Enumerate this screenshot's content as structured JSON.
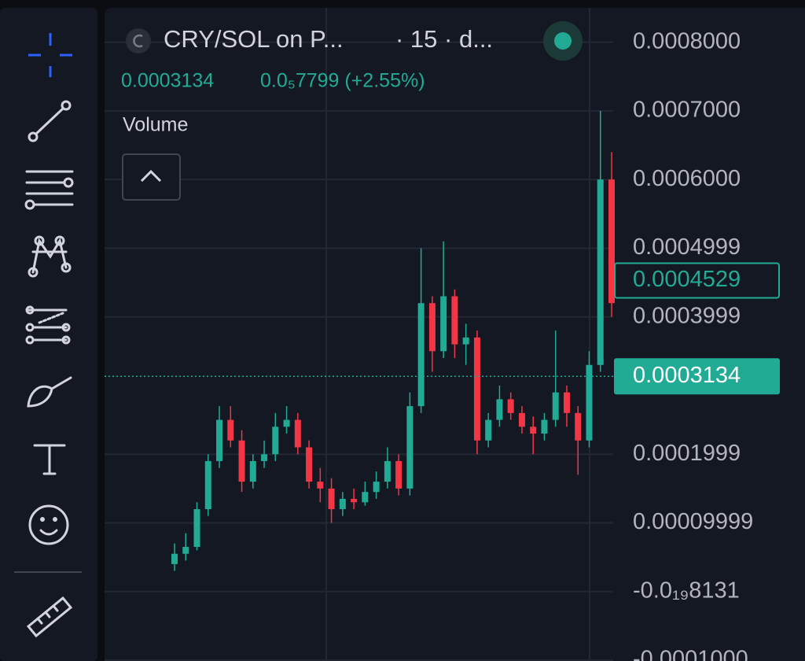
{
  "chart_data": {
    "type": "candlestick",
    "title": "CRY/SOL on P...",
    "subtitle": "· 15 · d...",
    "change_label": "0.0₅7799 (+2.55%)",
    "pane_label": "Volume",
    "last_price": 0.0003134,
    "highlight_price": 0.0004529,
    "up_color": "#22ab94",
    "down_color": "#f23645",
    "ylim": [
      -0.0001,
      0.00085
    ],
    "yticks": [
      {
        "value": 0.0008,
        "label": "0.0008000"
      },
      {
        "value": 0.0007,
        "label": "0.0007000"
      },
      {
        "value": 0.0006,
        "label": "0.0006000"
      },
      0.0004999,
      0.0003999,
      0.0001999,
      9.999e-05,
      {
        "value": -8.131e-20,
        "label": "-0.0₁₉8131"
      },
      {
        "value": -0.0001,
        "label": "-0.0001000"
      }
    ],
    "grid": true,
    "open": [
      4e-05,
      5.5e-05,
      6.5e-05,
      0.00012,
      0.00019,
      0.00025,
      0.00022,
      0.00016,
      0.00019,
      0.0002,
      0.00024,
      0.00025,
      0.00021,
      0.00016,
      0.00015,
      0.00012,
      0.000135,
      0.00013,
      0.000145,
      0.00016,
      0.00019,
      0.00015,
      0.00027,
      0.00042,
      0.00035,
      0.00043,
      0.00036,
      0.00037,
      0.00022,
      0.00025,
      0.00028,
      0.00026,
      0.00024,
      0.00023,
      0.00025,
      0.00029,
      0.00026,
      0.00022,
      0.00033,
      0.0006
    ],
    "high": [
      7e-05,
      8.5e-05,
      0.00013,
      0.0002,
      0.00027,
      0.00027,
      0.000235,
      0.0002,
      0.00022,
      0.00026,
      0.00027,
      0.00026,
      0.00022,
      0.00018,
      0.000165,
      0.000145,
      0.00015,
      0.00016,
      0.000175,
      0.00021,
      0.0002,
      0.00029,
      0.0005,
      0.00043,
      0.00051,
      0.00044,
      0.00039,
      0.00038,
      0.00026,
      0.0003,
      0.00029,
      0.00027,
      0.000255,
      0.00026,
      0.00038,
      0.0003,
      0.00027,
      0.00035,
      0.0007,
      0.00064
    ],
    "low": [
      3e-05,
      4.5e-05,
      6e-05,
      0.00011,
      0.00018,
      0.00021,
      0.000145,
      0.00015,
      0.00018,
      0.00019,
      0.00023,
      0.0002,
      0.00015,
      0.00013,
      0.0001,
      0.00011,
      0.00012,
      0.000125,
      0.000135,
      0.00015,
      0.00014,
      0.00014,
      0.00026,
      0.00032,
      0.00034,
      0.00034,
      0.00033,
      0.0002,
      0.00021,
      0.00024,
      0.00025,
      0.00023,
      0.0002,
      0.00022,
      0.00024,
      0.00024,
      0.00017,
      0.00021,
      0.00032,
      0.0004
    ],
    "close": [
      5.5e-05,
      6.5e-05,
      0.00012,
      0.00019,
      0.00025,
      0.00022,
      0.00016,
      0.00019,
      0.0002,
      0.00024,
      0.00025,
      0.00021,
      0.00016,
      0.00015,
      0.00012,
      0.000135,
      0.00013,
      0.000145,
      0.00016,
      0.00019,
      0.00015,
      0.00027,
      0.00042,
      0.00035,
      0.00043,
      0.00036,
      0.00037,
      0.00022,
      0.00025,
      0.00028,
      0.00026,
      0.00024,
      0.00023,
      0.00025,
      0.00029,
      0.00026,
      0.00022,
      0.00033,
      0.0006,
      0.00042
    ]
  }
}
